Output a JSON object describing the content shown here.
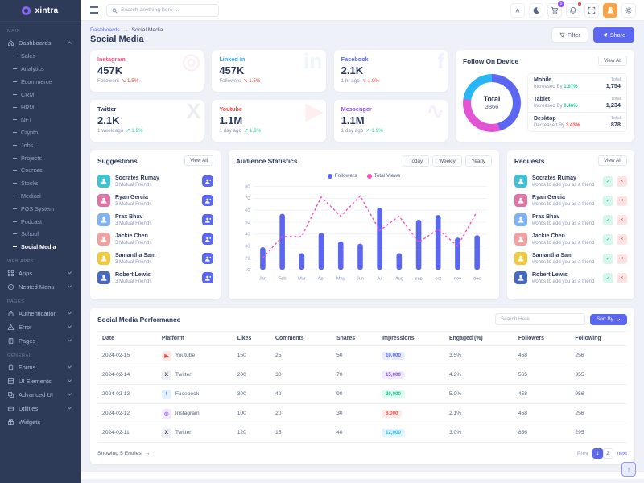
{
  "colors": {
    "primary": "#5b67f1",
    "pink": "#e354d4",
    "cyan": "#29b6f6",
    "success": "#21ce9e",
    "danger": "#fb4242"
  },
  "sidebar": {
    "logo": "xintra",
    "sections": [
      {
        "label": "MAIN",
        "items": [
          {
            "label": "Dashboards",
            "icon": "home-icon",
            "expanded": true,
            "has_children": true,
            "children": [
              "Sales",
              "Analytics",
              "Ecommerce",
              "CRM",
              "HRM",
              "NFT",
              "Crypto",
              "Jobs",
              "Projects",
              "Courses",
              "Stocks",
              "Medical",
              "POS System",
              "Podcast",
              "School",
              "Social Media"
            ],
            "active_child": "Social Media"
          }
        ]
      },
      {
        "label": "WEB APPS",
        "items": [
          {
            "label": "Apps",
            "icon": "apps-icon",
            "has_children": true
          },
          {
            "label": "Nested Menu",
            "icon": "nested-menu-icon",
            "has_children": true
          }
        ]
      },
      {
        "label": "PAGES",
        "items": [
          {
            "label": "Authentication",
            "icon": "lock-icon",
            "has_children": true
          },
          {
            "label": "Error",
            "icon": "warning-icon",
            "has_children": true
          },
          {
            "label": "Pages",
            "icon": "pages-icon",
            "has_children": true
          }
        ]
      },
      {
        "label": "GENERAL",
        "items": [
          {
            "label": "Forms",
            "icon": "forms-icon",
            "has_children": true
          },
          {
            "label": "UI Elements",
            "icon": "ui-elements-icon",
            "has_children": true
          },
          {
            "label": "Advanced UI",
            "icon": "advanced-ui-icon",
            "has_children": true
          },
          {
            "label": "Utilities",
            "icon": "utilities-icon",
            "has_children": true
          },
          {
            "label": "Widgets",
            "icon": "widgets-icon",
            "has_children": false
          }
        ]
      }
    ]
  },
  "header": {
    "search_placeholder": "Search anything here ...",
    "cart_badge": "5"
  },
  "breadcrumb": {
    "parent": "Dashboards",
    "separator": "→",
    "current": "Social Media"
  },
  "page": {
    "title": "Social Media",
    "filter_label": "Filter",
    "share_label": "Share"
  },
  "stat_cards": [
    {
      "name": "Instagram",
      "color": "#fd5182",
      "value": "457K",
      "meta": "Followers",
      "trend": "down",
      "pct": "1.5%",
      "watermark": "◎"
    },
    {
      "name": "Linked In",
      "color": "#35a7e9",
      "value": "457K",
      "meta": "Followers",
      "trend": "down",
      "pct": "1.5%",
      "watermark": "in"
    },
    {
      "name": "Facebook",
      "color": "#5b67f1",
      "value": "2.1K",
      "meta": "1 hr ago",
      "trend": "down",
      "pct": "1.9%",
      "watermark": "f"
    },
    {
      "name": "Twitter",
      "color": "#2b3a5c",
      "value": "2.1K",
      "meta": "1 week ago",
      "trend": "up",
      "pct": "1.9%",
      "watermark": "X"
    },
    {
      "name": "Youtube",
      "color": "#fb4242",
      "value": "1.1M",
      "meta": "1 day ago",
      "trend": "up",
      "pct": "1.9%",
      "watermark": "▶"
    },
    {
      "name": "Messenger",
      "color": "#8e54e9",
      "value": "1.1M",
      "meta": "1 day ago",
      "trend": "up",
      "pct": "1.9%",
      "watermark": "∿"
    }
  ],
  "follow_on_device": {
    "title": "Follow On Device",
    "view_all": "View All",
    "total_label": "Total",
    "total": "3866",
    "segments": [
      {
        "label": "Mobile",
        "change": "Increased By",
        "pct": "1.67%",
        "direction": "up",
        "total_label": "Total",
        "total": "1,754",
        "color": "#5b67f1",
        "share": 45.4
      },
      {
        "label": "Tablet",
        "change": "Increased By",
        "pct": "0.46%",
        "direction": "up",
        "total_label": "Total",
        "total": "1,234",
        "color": "#e354d4",
        "share": 31.9
      },
      {
        "label": "Desktop",
        "change": "Decreased By",
        "pct": "3.43%",
        "direction": "down",
        "total_label": "Total",
        "total": "878",
        "color": "#29b6f6",
        "share": 22.7
      }
    ]
  },
  "suggestions": {
    "title": "Suggestions",
    "view_all": "View All",
    "people": [
      {
        "name": "Socrates Rumay",
        "meta": "3 Mutual Friends",
        "avatar_color": "#3ec3d5"
      },
      {
        "name": "Ryan Gercia",
        "meta": "3 Mutual Friends",
        "avatar_color": "#e271a5"
      },
      {
        "name": "Prax Bhav",
        "meta": "3 Mutual Friends",
        "avatar_color": "#7fb3f5"
      },
      {
        "name": "Jackie Chen",
        "meta": "3 Mutual Friends",
        "avatar_color": "#f2a0a0"
      },
      {
        "name": "Samantha Sam",
        "meta": "3 Mutual Friends",
        "avatar_color": "#f0c93f"
      },
      {
        "name": "Robert Lewis",
        "meta": "3 Mutual Friends",
        "avatar_color": "#4668c5"
      }
    ]
  },
  "requests": {
    "title": "Requests",
    "view_all": "View All",
    "subtitle": "wont's to add you as a friend",
    "people": [
      {
        "name": "Socrates Rumay",
        "avatar_color": "#3ec3d5"
      },
      {
        "name": "Ryan Gercia",
        "avatar_color": "#e271a5"
      },
      {
        "name": "Prax Bhav",
        "avatar_color": "#7fb3f5"
      },
      {
        "name": "Jackie Chen",
        "avatar_color": "#f2a0a0"
      },
      {
        "name": "Samantha Sam",
        "avatar_color": "#f0c93f"
      },
      {
        "name": "Robert Lewis",
        "avatar_color": "#4668c5"
      }
    ]
  },
  "chart_data": {
    "type": "bar",
    "title": "Audience Statistics",
    "buttons": [
      "Today",
      "Weekly",
      "Yearly"
    ],
    "categories": [
      "Jan",
      "Feb",
      "Mar",
      "Apr",
      "May",
      "Jun",
      "Jul",
      "Aug",
      "sep",
      "oct",
      "nov",
      "dec"
    ],
    "series": [
      {
        "name": "Followers",
        "type": "bar",
        "color": "#5b67f1",
        "values": [
          29,
          57,
          24,
          41,
          34,
          32,
          62,
          24,
          52,
          56,
          37,
          39
        ]
      },
      {
        "name": "Total Views",
        "type": "line",
        "color": "#fb4fc9",
        "values": [
          20,
          38,
          38,
          71,
          55,
          72,
          43,
          55,
          33,
          44,
          30,
          59
        ]
      }
    ],
    "ylim": [
      10,
      80
    ],
    "yticks": [
      10,
      20,
      30,
      40,
      50,
      60,
      70,
      80
    ],
    "legend_position": "top",
    "grid": true
  },
  "performance": {
    "title": "Social Media Performance",
    "search_placeholder": "Search Here",
    "sort_label": "Sort By",
    "columns": [
      "Date",
      "Platform",
      "Likes",
      "Comments",
      "Shares",
      "Impressions",
      "Engaged (%)",
      "Followers",
      "Following"
    ],
    "rows": [
      {
        "date": "2024-02-15",
        "platform": "Youtube",
        "icon_bg": "#fee9e7",
        "icon_color": "#fb4242",
        "icon_glyph": "▶",
        "likes": "150",
        "comments": "25",
        "shares": "50",
        "impressions": "10,000",
        "imp_bg": "#e8ebfe",
        "imp_color": "#5b67f1",
        "engaged": "3.5%",
        "followers": "458",
        "following": "256"
      },
      {
        "date": "2024-02-14",
        "platform": "Twitter",
        "icon_bg": "#eef0f5",
        "icon_color": "#23303f",
        "icon_glyph": "X",
        "likes": "200",
        "comments": "30",
        "shares": "70",
        "impressions": "15,000",
        "imp_bg": "#f2e9fe",
        "imp_color": "#8e54e9",
        "engaged": "4.2%",
        "followers": "565",
        "following": "355"
      },
      {
        "date": "2024-02-13",
        "platform": "Facebook",
        "icon_bg": "#e3f1fe",
        "icon_color": "#3b82f6",
        "icon_glyph": "f",
        "likes": "300",
        "comments": "40",
        "shares": "90",
        "impressions": "20,000",
        "imp_bg": "#defaf0",
        "imp_color": "#17ce8c",
        "engaged": "5.0%",
        "followers": "458",
        "following": "956"
      },
      {
        "date": "2024-02-12",
        "platform": "Instagram",
        "icon_bg": "#f3e8fe",
        "icon_color": "#8e54e9",
        "icon_glyph": "◎",
        "likes": "100",
        "comments": "20",
        "shares": "30",
        "impressions": "8,000",
        "imp_bg": "#feeae6",
        "imp_color": "#fb5454",
        "engaged": "2.1%",
        "followers": "458",
        "following": "256"
      },
      {
        "date": "2024-02-11",
        "platform": "Twitter",
        "icon_bg": "#eef0f5",
        "icon_color": "#23303f",
        "icon_glyph": "X",
        "likes": "120",
        "comments": "15",
        "shares": "40",
        "impressions": "12,000",
        "imp_bg": "#dff4fc",
        "imp_color": "#26bcf3",
        "engaged": "3.0%",
        "followers": "856",
        "following": "295"
      }
    ],
    "footer": {
      "showing": "Showing 5 Entries",
      "arrow": "→",
      "prev": "Prev",
      "pages": [
        "1",
        "2"
      ],
      "active_page": "1",
      "next": "next"
    }
  }
}
